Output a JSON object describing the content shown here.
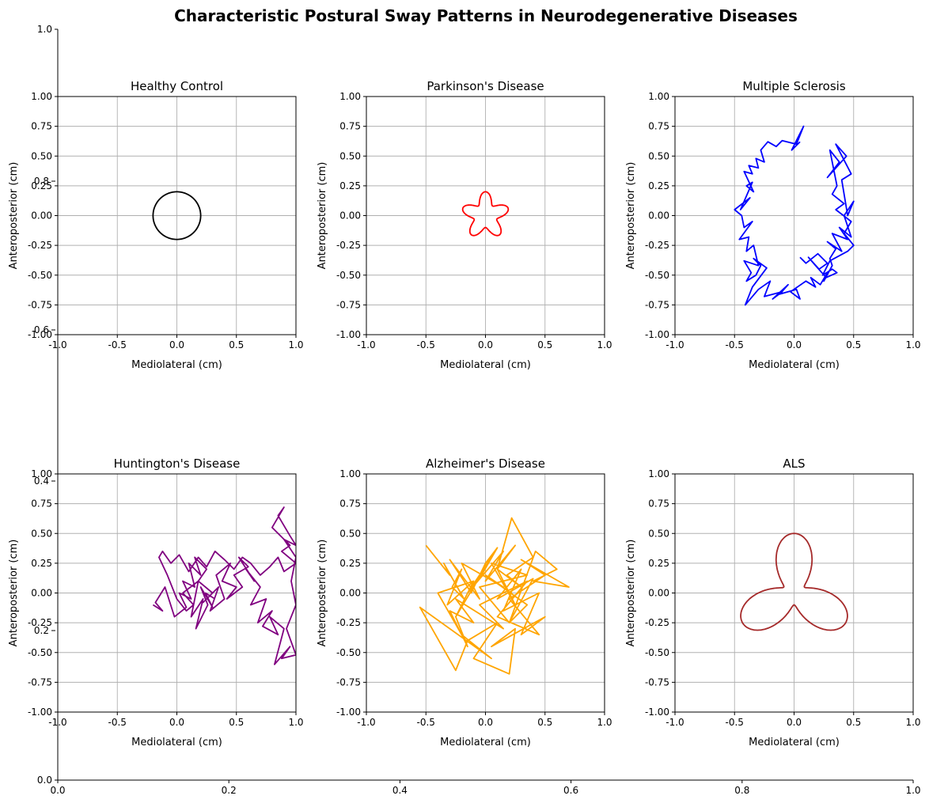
{
  "figure": {
    "title": "Characteristic Postural Sway Patterns in Neurodegenerative Diseases",
    "background_axes": {
      "x_ticks": [
        "0.0",
        "0.2",
        "0.4",
        "0.6",
        "0.8",
        "1.0"
      ],
      "y_ticks": [
        "0.0",
        "1.0"
      ],
      "xlim": [
        0,
        1
      ],
      "ylim": [
        0,
        1
      ]
    },
    "artifact_ticks": [
      "0.8",
      "0.6",
      "0.4",
      "0.2"
    ]
  },
  "chart_data": [
    {
      "type": "line",
      "title": "Healthy Control",
      "xlabel": "Mediolateral (cm)",
      "ylabel": "Anteroposterior (cm)",
      "xlim": [
        -1,
        1
      ],
      "ylim": [
        -1,
        1
      ],
      "x_ticks": [
        "-1.0",
        "-0.5",
        "0.0",
        "0.5",
        "1.0"
      ],
      "y_ticks": [
        "-1.00",
        "-0.75",
        "-0.50",
        "-0.25",
        "0.00",
        "0.25",
        "0.50",
        "0.75",
        "1.00"
      ],
      "grid": true,
      "color": "#000000",
      "shape": "circle",
      "radius": 0.2,
      "center": [
        0,
        0
      ]
    },
    {
      "type": "line",
      "title": "Parkinson's Disease",
      "xlabel": "Mediolateral (cm)",
      "ylabel": "Anteroposterior (cm)",
      "xlim": [
        -1,
        1
      ],
      "ylim": [
        -1,
        1
      ],
      "x_ticks": [
        "-1.0",
        "-0.5",
        "0.0",
        "0.5",
        "1.0"
      ],
      "y_ticks": [
        "-1.00",
        "-0.75",
        "-0.50",
        "-0.25",
        "0.00",
        "0.25",
        "0.50",
        "0.75",
        "1.00"
      ],
      "grid": true,
      "color": "#ff0000",
      "shape": "five-lobed rose",
      "base_radius": 0.15,
      "lobe_amplitude": 0.05,
      "lobes": 5
    },
    {
      "type": "line",
      "title": "Multiple Sclerosis",
      "xlabel": "Mediolateral (cm)",
      "ylabel": "Anteroposterior (cm)",
      "xlim": [
        -1,
        1
      ],
      "ylim": [
        -1,
        1
      ],
      "x_ticks": [
        "-1.0",
        "-0.5",
        "0.0",
        "0.5",
        "1.0"
      ],
      "y_ticks": [
        "-1.00",
        "-0.75",
        "-0.50",
        "-0.25",
        "0.00",
        "0.25",
        "0.50",
        "0.75",
        "1.00"
      ],
      "grid": true,
      "color": "#0000ff",
      "x": [
        0.05,
        -0.02,
        0.08,
        0.02,
        -0.1,
        -0.15,
        -0.22,
        -0.28,
        -0.25,
        -0.32,
        -0.3,
        -0.38,
        -0.35,
        -0.42,
        -0.34,
        -0.4,
        -0.35,
        -0.45,
        -0.37,
        -0.5,
        -0.44,
        -0.42,
        -0.35,
        -0.46,
        -0.38,
        -0.4,
        -0.34,
        -0.3,
        -0.42,
        -0.36,
        -0.4,
        -0.32,
        -0.28,
        -0.34,
        -0.23,
        -0.35,
        -0.41,
        -0.3,
        -0.2,
        -0.25,
        -0.1,
        -0.18,
        -0.05,
        -0.12,
        0.02,
        0.05,
        -0.03,
        0.1,
        0.18,
        0.14,
        0.22,
        0.28,
        0.25,
        0.32,
        0.3,
        0.35,
        0.28,
        0.4,
        0.32,
        0.45,
        0.38,
        0.48,
        0.42,
        0.5,
        0.45,
        0.4,
        0.48,
        0.35,
        0.44,
        0.28,
        0.38,
        0.3,
        0.36,
        0.32,
        0.42,
        0.35,
        0.48,
        0.42,
        0.5,
        0.45,
        0.3,
        0.24,
        0.32,
        0.36,
        0.27,
        0.18,
        0.12,
        0.21,
        0.28,
        0.2,
        0.1,
        0.05
      ],
      "y": [
        0.62,
        0.55,
        0.75,
        0.6,
        0.63,
        0.58,
        0.62,
        0.55,
        0.45,
        0.48,
        0.4,
        0.42,
        0.35,
        0.37,
        0.2,
        0.25,
        0.28,
        0.05,
        0.15,
        0.05,
        0.0,
        -0.1,
        -0.05,
        -0.2,
        -0.18,
        -0.3,
        -0.25,
        -0.42,
        -0.38,
        -0.48,
        -0.55,
        -0.5,
        -0.42,
        -0.36,
        -0.44,
        -0.6,
        -0.75,
        -0.62,
        -0.55,
        -0.68,
        -0.64,
        -0.7,
        -0.58,
        -0.66,
        -0.62,
        -0.7,
        -0.64,
        -0.55,
        -0.6,
        -0.52,
        -0.58,
        -0.48,
        -0.55,
        -0.42,
        -0.36,
        -0.28,
        -0.22,
        -0.3,
        -0.15,
        -0.2,
        -0.1,
        -0.18,
        0.0,
        0.12,
        0.0,
        0.3,
        0.35,
        0.6,
        0.5,
        0.32,
        0.45,
        0.55,
        0.25,
        0.18,
        0.1,
        0.05,
        -0.05,
        -0.15,
        -0.25,
        -0.3,
        -0.38,
        -0.5,
        -0.45,
        -0.48,
        -0.52,
        -0.42,
        -0.35,
        -0.45,
        -0.4,
        -0.32,
        -0.4,
        -0.35
      ]
    },
    {
      "type": "line",
      "title": "Huntington's Disease",
      "xlabel": "Mediolateral (cm)",
      "ylabel": "Anteroposterior (cm)",
      "xlim": [
        -1,
        1
      ],
      "ylim": [
        -1,
        1
      ],
      "x_ticks": [
        "-1.0",
        "-0.5",
        "0.0",
        "0.5",
        "1.0"
      ],
      "y_ticks": [
        "-1.00",
        "-0.75",
        "-0.50",
        "-0.25",
        "0.00",
        "0.25",
        "0.50",
        "0.75",
        "1.00"
      ],
      "grid": true,
      "color": "#800080",
      "x": [
        -0.2,
        -0.12,
        -0.18,
        -0.1,
        -0.02,
        0.08,
        0.02,
        0.12,
        0.05,
        0.15,
        0.1,
        0.2,
        0.15,
        0.25,
        0.18,
        0.3,
        0.22,
        0.35,
        0.28,
        0.4,
        0.33,
        0.45,
        0.38,
        0.5,
        0.42,
        0.55,
        0.48,
        0.6,
        0.52,
        0.65,
        0.58,
        0.7,
        0.62,
        0.75,
        0.68,
        0.8,
        0.72,
        0.85,
        0.78,
        0.9,
        0.82,
        0.95,
        0.88,
        1.0,
        0.92,
        1.0,
        0.96,
        1.0,
        0.9,
        1.0,
        0.95,
        0.85,
        0.9,
        0.8,
        0.95,
        0.88,
        1.0,
        0.9,
        0.85,
        0.78,
        0.7,
        0.62,
        0.55,
        0.48,
        0.4,
        0.32,
        0.25,
        0.18,
        0.1,
        0.02,
        -0.05,
        -0.12,
        -0.15,
        -0.08,
        0.0,
        0.08,
        0.14,
        0.05,
        0.18,
        0.12,
        0.22,
        0.16,
        0.26,
        0.2,
        0.3,
        0.24,
        0.32
      ],
      "y": [
        -0.1,
        -0.15,
        -0.08,
        0.05,
        -0.2,
        -0.12,
        0.0,
        -0.05,
        0.1,
        0.05,
        0.25,
        0.15,
        0.3,
        0.2,
        0.1,
        0.0,
        -0.08,
        0.05,
        -0.15,
        -0.05,
        0.15,
        0.25,
        0.1,
        0.05,
        -0.05,
        0.05,
        0.15,
        0.22,
        0.3,
        0.1,
        0.2,
        0.05,
        -0.1,
        -0.05,
        -0.25,
        -0.15,
        -0.28,
        -0.35,
        -0.2,
        -0.3,
        -0.6,
        -0.45,
        -0.55,
        -0.52,
        -0.3,
        -0.1,
        0.1,
        0.3,
        0.45,
        0.4,
        0.48,
        0.65,
        0.72,
        0.55,
        0.4,
        0.35,
        0.25,
        0.18,
        0.3,
        0.22,
        0.15,
        0.25,
        0.3,
        0.2,
        0.28,
        0.35,
        0.22,
        0.3,
        0.18,
        0.32,
        0.25,
        0.35,
        0.3,
        0.15,
        -0.05,
        -0.15,
        -0.1,
        0.0,
        0.1,
        -0.2,
        -0.05,
        -0.3,
        -0.1,
        0.05,
        -0.12,
        0.0,
        -0.05
      ]
    },
    {
      "type": "line",
      "title": "Alzheimer's Disease",
      "xlabel": "Mediolateral (cm)",
      "ylabel": "Anteroposterior (cm)",
      "xlim": [
        -1,
        1
      ],
      "ylim": [
        -1,
        1
      ],
      "x_ticks": [
        "-1.0",
        "-0.5",
        "0.0",
        "0.5",
        "1.0"
      ],
      "y_ticks": [
        "-1.00",
        "-0.75",
        "-0.50",
        "-0.25",
        "0.00",
        "0.25",
        "0.50",
        "0.75",
        "1.00"
      ],
      "grid": true,
      "color": "#ffa500",
      "x": [
        -0.5,
        -0.3,
        -0.35,
        -0.18,
        -0.28,
        -0.2,
        -0.32,
        -0.1,
        -0.25,
        0.05,
        -0.15,
        0.15,
        0.0,
        0.25,
        0.1,
        0.22,
        0.4,
        0.18,
        0.3,
        0.1,
        0.25,
        0.05,
        0.35,
        -0.05,
        0.2,
        0.42,
        0.6,
        0.4,
        0.7,
        0.3,
        0.5,
        0.2,
        0.45,
        0.1,
        0.35,
        -0.05,
        0.15,
        -0.25,
        -0.1,
        -0.3,
        -0.15,
        -0.25,
        -0.1,
        -0.4,
        -0.2,
        0.05,
        -0.55,
        -0.25,
        -0.15,
        0.1,
        -0.1,
        0.2,
        0.25,
        0.05,
        0.5,
        0.3,
        0.45,
        0.15,
        0.3,
        0.1,
        0.4,
        0.2,
        0.35,
        0.0,
        0.15,
        -0.2,
        -0.05,
        -0.3,
        -0.18,
        -0.12,
        0.0,
        0.1,
        -0.05
      ],
      "y": [
        0.4,
        0.15,
        0.25,
        -0.05,
        0.05,
        0.2,
        -0.1,
        0.1,
        -0.2,
        0.3,
        0.0,
        0.35,
        0.1,
        0.4,
        0.2,
        0.63,
        0.3,
        0.15,
        0.05,
        0.2,
        -0.1,
        0.25,
        0.15,
        0.05,
        -0.25,
        0.35,
        0.2,
        0.1,
        0.05,
        0.28,
        0.15,
        -0.05,
        -0.35,
        -0.2,
        0.1,
        -0.1,
        -0.3,
        -0.05,
        -0.25,
        -0.15,
        -0.45,
        -0.2,
        0.1,
        0.0,
        -0.35,
        -0.55,
        -0.12,
        -0.65,
        -0.4,
        -0.25,
        -0.55,
        -0.68,
        -0.3,
        -0.45,
        -0.2,
        -0.35,
        0.0,
        -0.15,
        0.2,
        -0.05,
        0.12,
        -0.25,
        -0.1,
        0.15,
        0.05,
        0.25,
        -0.05,
        0.28,
        0.1,
        0.0,
        0.25,
        0.38,
        0.12
      ]
    },
    {
      "type": "line",
      "title": "ALS",
      "xlabel": "Mediolateral (cm)",
      "ylabel": "Anteroposterior (cm)",
      "xlim": [
        -1,
        1
      ],
      "ylim": [
        -1,
        1
      ],
      "x_ticks": [
        "-1.0",
        "-0.5",
        "0.0",
        "0.5",
        "1.0"
      ],
      "y_ticks": [
        "-1.00",
        "-0.75",
        "-0.50",
        "-0.25",
        "0.00",
        "0.25",
        "0.50",
        "0.75",
        "1.00"
      ],
      "grid": true,
      "color": "#a52a2a",
      "shape": "three-lobed trefoil",
      "lobes": 3,
      "max_radius": 0.5,
      "min_radius": 0.1
    }
  ]
}
